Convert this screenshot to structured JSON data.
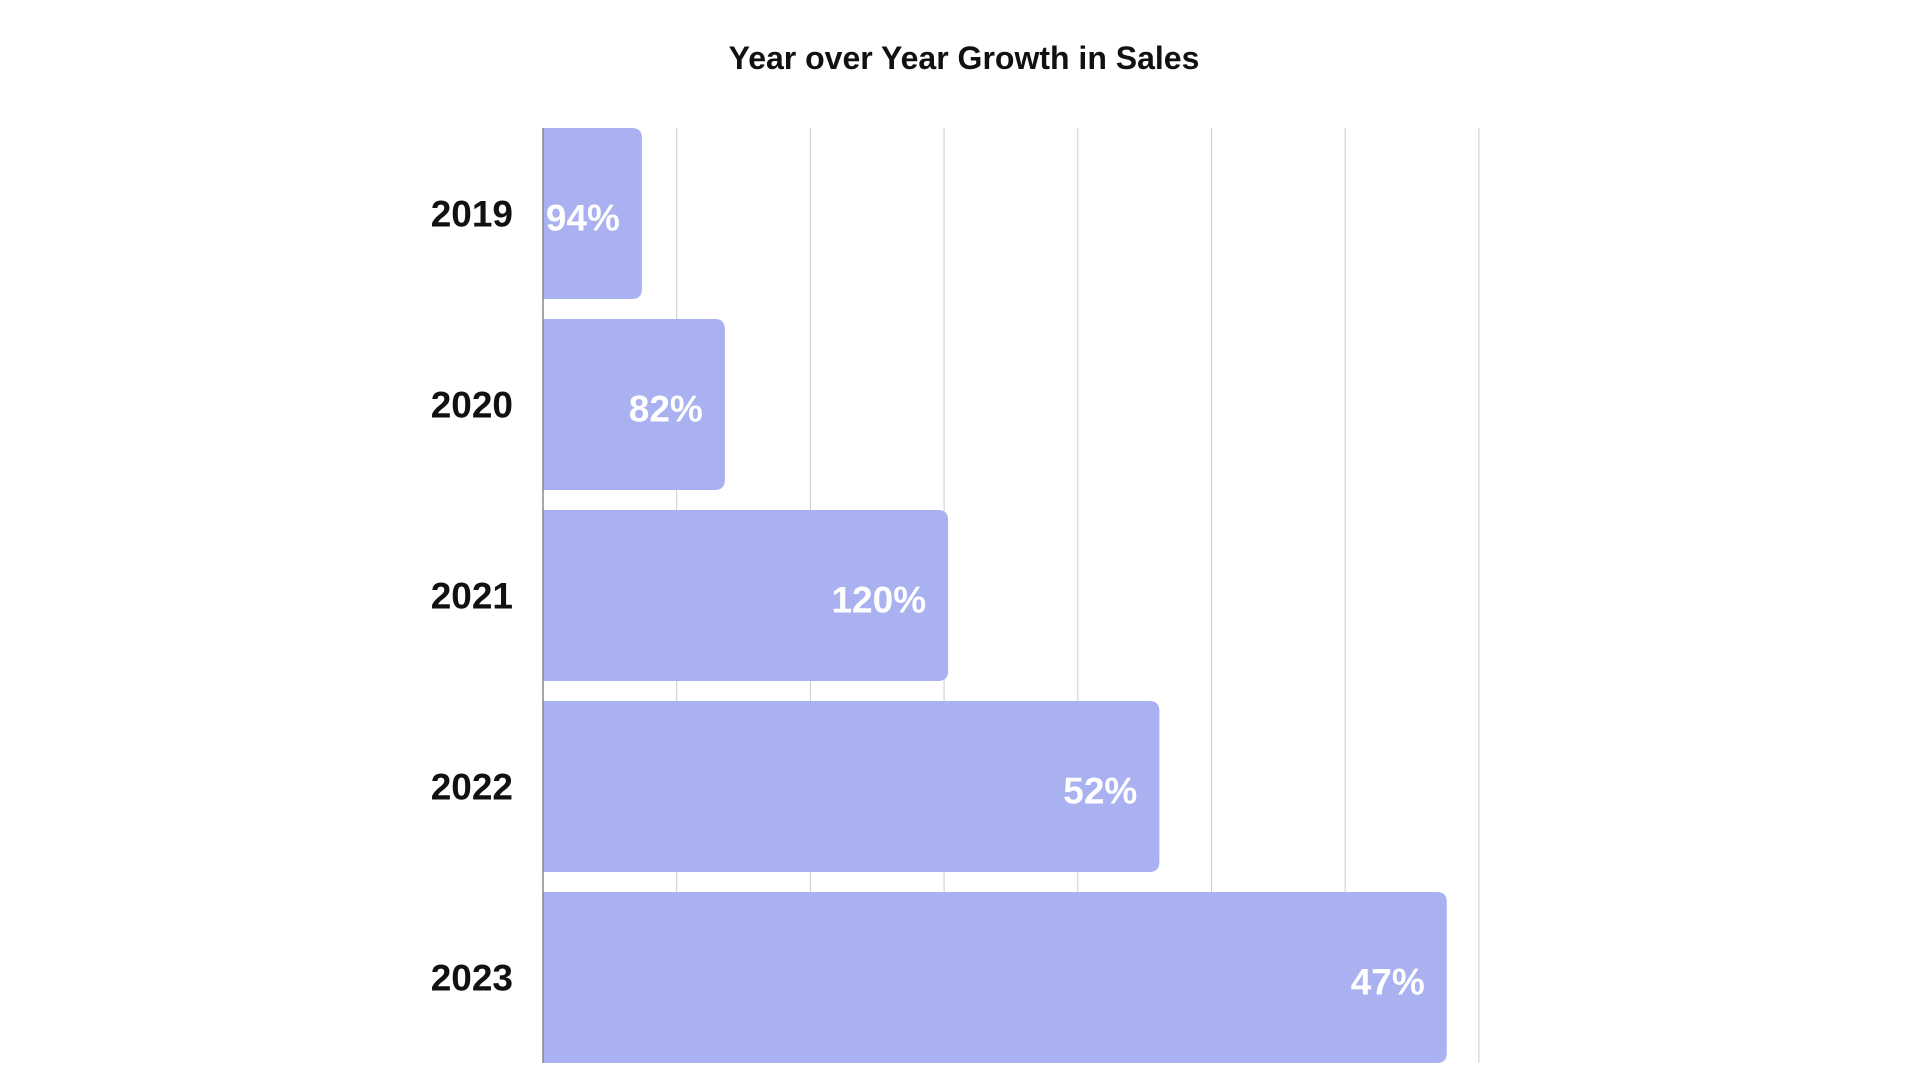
{
  "chart_data": {
    "type": "bar",
    "orientation": "horizontal",
    "title": "Year over Year Growth in Sales",
    "categories": [
      "2019",
      "2020",
      "2021",
      "2022",
      "2023"
    ],
    "values": [
      0.74,
      1.36,
      3.03,
      4.61,
      6.76
    ],
    "data_labels": [
      "94%",
      "82%",
      "120%",
      "52%",
      "47%"
    ],
    "xlim": [
      0,
      7
    ],
    "x_ticks_printed": false,
    "grid": true,
    "bar_color": "#aab1f0",
    "label_color": "#ffffff",
    "gridline_color": "#cccccc",
    "xlabel": "",
    "ylabel": ""
  }
}
